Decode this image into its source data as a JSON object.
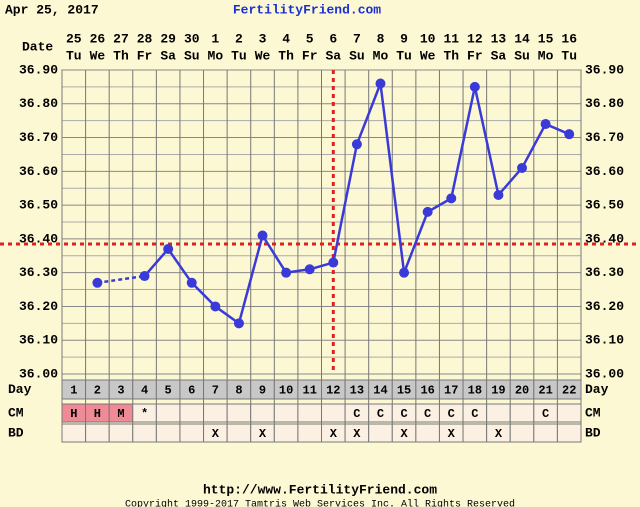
{
  "chart_data": {
    "type": "line",
    "header_date": "Apr 25, 2017",
    "site_title": "FertilityFriend.com",
    "date_label": "Date",
    "dates": [
      "25",
      "26",
      "27",
      "28",
      "29",
      "30",
      "1",
      "2",
      "3",
      "4",
      "5",
      "6",
      "7",
      "8",
      "9",
      "10",
      "11",
      "12",
      "13",
      "14",
      "15",
      "16"
    ],
    "weekdays": [
      "Tu",
      "We",
      "Th",
      "Fr",
      "Sa",
      "Su",
      "Mo",
      "Tu",
      "We",
      "Th",
      "Fr",
      "Sa",
      "Su",
      "Mo",
      "Tu",
      "We",
      "Th",
      "Fr",
      "Sa",
      "Su",
      "Mo",
      "Tu"
    ],
    "day_label": "Day",
    "days": [
      1,
      2,
      3,
      4,
      5,
      6,
      7,
      8,
      9,
      10,
      11,
      12,
      13,
      14,
      15,
      16,
      17,
      18,
      19,
      20,
      21,
      22
    ],
    "values": [
      null,
      36.27,
      null,
      36.29,
      36.37,
      36.27,
      36.2,
      36.15,
      36.41,
      36.3,
      36.31,
      36.33,
      36.68,
      36.86,
      36.3,
      36.48,
      36.52,
      36.85,
      36.53,
      36.61,
      36.74,
      36.71
    ],
    "color": "#3a3ad8",
    "ylim": [
      36.0,
      36.9
    ],
    "yticks": [
      {
        "value": 36.0,
        "label": "36.00"
      },
      {
        "value": 36.1,
        "label": "36.10"
      },
      {
        "value": 36.2,
        "label": "36.20"
      },
      {
        "value": 36.3,
        "label": "36.30"
      },
      {
        "value": 36.4,
        "label": "36.40"
      },
      {
        "value": 36.5,
        "label": "36.50"
      },
      {
        "value": 36.6,
        "label": "36.60"
      },
      {
        "value": 36.7,
        "label": "36.70"
      },
      {
        "value": 36.8,
        "label": "36.80"
      },
      {
        "value": 36.9,
        "label": "36.90"
      }
    ],
    "minor_yticks": [
      36.05,
      36.15,
      36.25,
      36.35,
      36.45,
      36.55,
      36.65,
      36.75,
      36.85
    ],
    "grid": true,
    "coverline": 36.385,
    "ovulation_day": 12,
    "marker_line_color": "#e02020",
    "cm_label": "CM",
    "cm": [
      "H",
      "H",
      "M",
      "*",
      null,
      null,
      null,
      null,
      null,
      null,
      null,
      null,
      "C",
      "C",
      "C",
      "C",
      "C",
      "C",
      null,
      null,
      "C",
      null
    ],
    "cm_highlight": [
      true,
      true,
      true,
      false,
      false,
      false,
      false,
      false,
      false,
      false,
      false,
      false,
      false,
      false,
      false,
      false,
      false,
      false,
      false,
      false,
      false,
      false
    ],
    "cm_highlight_color": "#f08a96",
    "bd_label": "BD",
    "bd": [
      null,
      null,
      null,
      null,
      null,
      null,
      "X",
      null,
      "X",
      null,
      null,
      "X",
      "X",
      null,
      "X",
      null,
      "X",
      null,
      "X",
      null,
      null,
      null
    ],
    "footer_url": "http://www.FertilityFriend.com",
    "copyright": "Copyright 1999-2017 Tamtris Web Services Inc. All Rights Reserved"
  }
}
